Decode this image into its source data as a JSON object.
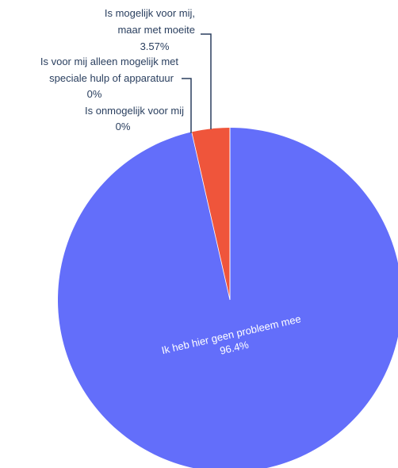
{
  "chart_data": {
    "type": "pie",
    "labels": [
      "Ik heb hier geen probleem mee",
      "Is mogelijk voor mij, maar met moeite",
      "Is voor mij alleen mogelijk met speciale hulp of apparatuur",
      "Is onmogelijk voor mij"
    ],
    "values": [
      96.43,
      3.57,
      0,
      0
    ],
    "value_labels": [
      "96.4%",
      "3.57%",
      "0%",
      "0%"
    ],
    "colors": [
      "#636efa",
      "#ef553b",
      "#00cc96",
      "#ab63fa"
    ],
    "title": "",
    "legend": "none"
  },
  "annotations": {
    "slice0": {
      "line1": "Ik heb hier geen probleem mee",
      "value": "96.4%"
    },
    "slice1": {
      "line1": "Is mogelijk voor mij,",
      "line2": "maar met moeite",
      "value": "3.57%"
    },
    "slice2": {
      "line1": "Is voor mij alleen mogelijk met",
      "line2": "speciale hulp of apparatuur",
      "value": "0%"
    },
    "slice3": {
      "line1": "Is onmogelijk voor mij",
      "value": "0%"
    }
  }
}
